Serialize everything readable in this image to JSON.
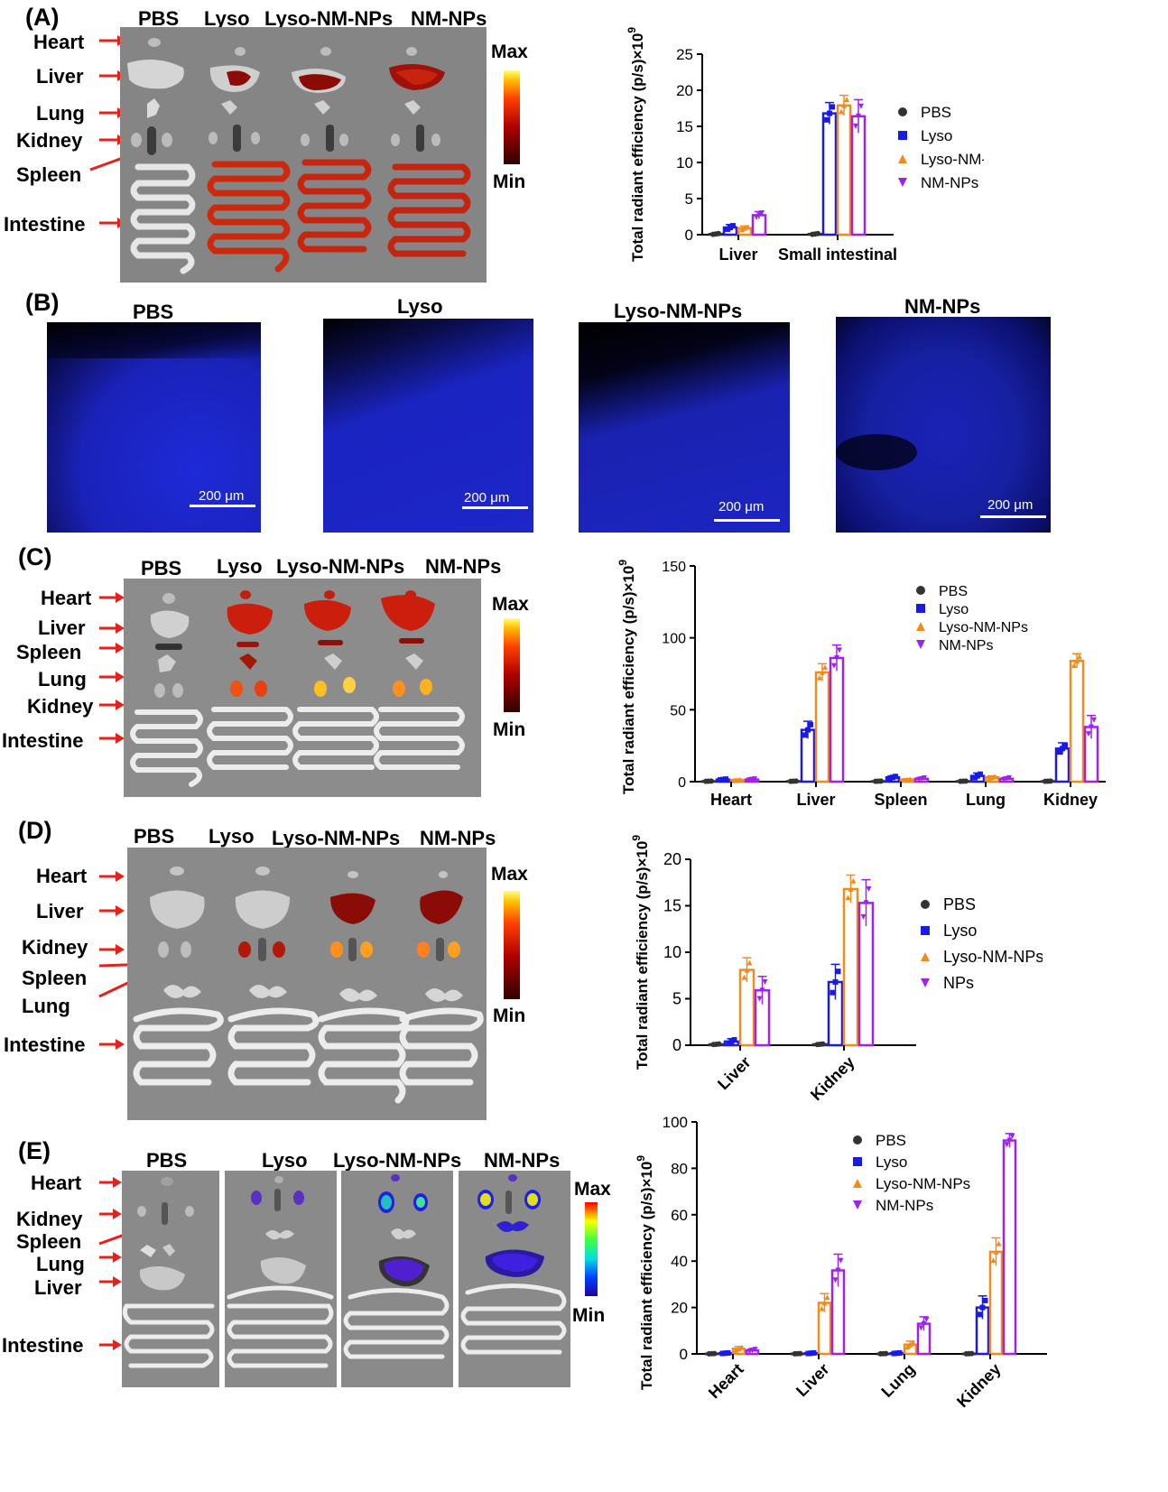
{
  "panels": {
    "A": {
      "letter": "(A)",
      "columns": [
        "PBS",
        "Lyso",
        "Lyso-NM-NPs",
        "NM-NPs"
      ],
      "organs": [
        "Heart",
        "Liver",
        "Lung",
        "Kidney",
        "Spleen",
        "Intestine"
      ],
      "colorbar": {
        "max": "Max",
        "min": "Min"
      }
    },
    "B": {
      "letter": "(B)",
      "columns": [
        "PBS",
        "Lyso",
        "Lyso-NM-NPs",
        "NM-NPs"
      ],
      "scalebar": "200 μm"
    },
    "C": {
      "letter": "(C)",
      "columns": [
        "PBS",
        "Lyso",
        "Lyso-NM-NPs",
        "NM-NPs"
      ],
      "organs": [
        "Heart",
        "Liver",
        "Spleen",
        "Lung",
        "Kidney",
        "Intestine"
      ],
      "colorbar": {
        "max": "Max",
        "min": "Min"
      }
    },
    "D": {
      "letter": "(D)",
      "columns": [
        "PBS",
        "Lyso",
        "Lyso-NM-NPs",
        "NM-NPs"
      ],
      "organs": [
        "Heart",
        "Liver",
        "Kidney",
        "Spleen",
        "Lung",
        "Intestine"
      ],
      "colorbar": {
        "max": "Max",
        "min": "Min"
      }
    },
    "E": {
      "letter": "(E)",
      "columns": [
        "PBS",
        "Lyso",
        "Lyso-NM-NPs",
        "NM-NPs"
      ],
      "organs": [
        "Heart",
        "Kidney",
        "Spleen",
        "Lung",
        "Liver",
        "Intestine"
      ],
      "colorbar": {
        "max": "Max",
        "min": "Min"
      }
    }
  },
  "colors": {
    "PBS": "#333333",
    "Lyso": "#1a1ae6",
    "LysoNM": "#f28a1c",
    "NM": "#a020f0"
  },
  "chart_data": [
    {
      "id": "A",
      "type": "bar",
      "ylabel": "Total radiant efficiency (p/s)×10",
      "ylabel_exp": "9",
      "ylim": [
        0,
        25
      ],
      "yticks": [
        0,
        5,
        10,
        15,
        20,
        25
      ],
      "categories": [
        "Liver",
        "Small intestinal"
      ],
      "legend_position": "right",
      "legend_font": 17,
      "series": [
        {
          "name": "PBS",
          "marker": "circle",
          "values": [
            0.1,
            0.1
          ],
          "errors": [
            0.1,
            0.1
          ]
        },
        {
          "name": "Lyso",
          "marker": "square",
          "values": [
            1.0,
            16.8
          ],
          "errors": [
            0.4,
            1.5
          ]
        },
        {
          "name": "Lyso-NM-NPs",
          "marker": "triangle",
          "values": [
            0.9,
            17.9
          ],
          "errors": [
            0.3,
            1.4
          ]
        },
        {
          "name": "NM-NPs",
          "marker": "tri-down",
          "values": [
            2.7,
            16.4
          ],
          "errors": [
            0.5,
            2.3
          ]
        }
      ]
    },
    {
      "id": "C",
      "type": "bar",
      "ylabel": "Total radiant efficiency (p/s)×10",
      "ylabel_exp": "9",
      "ylim": [
        0,
        150
      ],
      "yticks": [
        0,
        50,
        100,
        150
      ],
      "categories": [
        "Heart",
        "Liver",
        "Spleen",
        "Lung",
        "Kidney"
      ],
      "legend_position": "top-center",
      "legend_font": 16,
      "series": [
        {
          "name": "PBS",
          "marker": "circle",
          "values": [
            0.3,
            0.3,
            0.3,
            0.3,
            0.3
          ],
          "errors": [
            0.1,
            0.1,
            0.1,
            0.1,
            0.1
          ]
        },
        {
          "name": "Lyso",
          "marker": "square",
          "values": [
            1.5,
            36,
            3,
            4,
            23
          ],
          "errors": [
            0.5,
            6,
            1,
            2,
            4
          ]
        },
        {
          "name": "Lyso-NM-NPs",
          "marker": "triangle",
          "values": [
            1.2,
            76,
            1.5,
            3,
            84
          ],
          "errors": [
            0.5,
            6,
            0.5,
            1,
            5
          ]
        },
        {
          "name": "NM-NPs",
          "marker": "tri-down",
          "values": [
            1.5,
            86,
            2,
            2,
            38
          ],
          "errors": [
            0.5,
            9,
            0.8,
            1,
            8
          ]
        }
      ]
    },
    {
      "id": "D",
      "type": "bar",
      "ylabel": "Total radiant efficiency (p/s)×10",
      "ylabel_exp": "9",
      "ylim": [
        0,
        20
      ],
      "yticks": [
        0,
        5,
        10,
        15,
        20
      ],
      "categories": [
        "Liver",
        "Kidney"
      ],
      "xtick_rotation": -45,
      "legend_position": "right",
      "legend_font": 18,
      "series": [
        {
          "name": "PBS",
          "marker": "circle",
          "values": [
            0.1,
            0.1
          ],
          "errors": [
            0.05,
            0.05
          ]
        },
        {
          "name": "Lyso",
          "marker": "square",
          "values": [
            0.4,
            6.8
          ],
          "errors": [
            0.3,
            1.9
          ]
        },
        {
          "name": "Lyso-NM-NPs",
          "marker": "triangle",
          "values": [
            8.1,
            16.8
          ],
          "errors": [
            1.3,
            1.5
          ]
        },
        {
          "name": "NPs",
          "marker": "tri-down",
          "values": [
            5.9,
            15.3
          ],
          "errors": [
            1.5,
            2.5
          ]
        }
      ]
    },
    {
      "id": "E",
      "type": "bar",
      "ylabel": "Total radiant efficiency (p/s)×10",
      "ylabel_exp": "9",
      "ylim": [
        0,
        100
      ],
      "yticks": [
        0,
        20,
        40,
        60,
        80,
        100
      ],
      "categories": [
        "Heart",
        "Liver",
        "Lung",
        "Kidney"
      ],
      "xtick_rotation": -45,
      "legend_position": "top-center",
      "legend_font": 17,
      "series": [
        {
          "name": "PBS",
          "marker": "circle",
          "values": [
            0.1,
            0.1,
            0.1,
            0.1
          ],
          "errors": [
            0.05,
            0.05,
            0.05,
            0.05
          ]
        },
        {
          "name": "Lyso",
          "marker": "square",
          "values": [
            0.3,
            0.3,
            0.3,
            20
          ],
          "errors": [
            0.2,
            0.2,
            0.2,
            5
          ]
        },
        {
          "name": "Lyso-NM-NPs",
          "marker": "triangle",
          "values": [
            2.2,
            22,
            4,
            44
          ],
          "errors": [
            1,
            4,
            1.5,
            6
          ]
        },
        {
          "name": "NM-NPs",
          "marker": "tri-down",
          "values": [
            1.5,
            36,
            13,
            92
          ],
          "errors": [
            0.7,
            7,
            3,
            3
          ]
        }
      ]
    }
  ]
}
